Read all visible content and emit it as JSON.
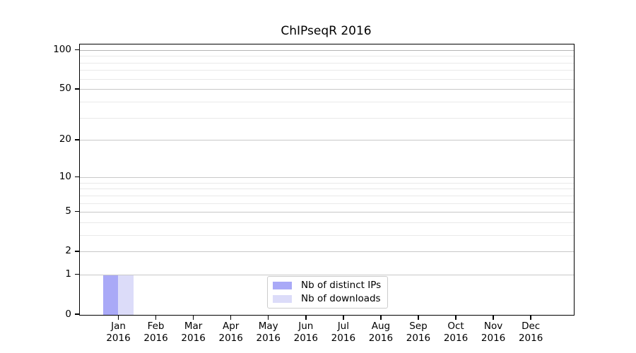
{
  "figure": {
    "background": "#ffffff"
  },
  "chart_data": {
    "type": "bar",
    "title": "ChIPseqR 2016",
    "categories": [
      "Jan 2016",
      "Feb 2016",
      "Mar 2016",
      "Apr 2016",
      "May 2016",
      "Jun 2016",
      "Jul 2016",
      "Aug 2016",
      "Sep 2016",
      "Oct 2016",
      "Nov 2016",
      "Dec 2016"
    ],
    "series": [
      {
        "name": "Nb of distinct IPs",
        "color": "#a9a9f7",
        "values": [
          1,
          0,
          0,
          0,
          0,
          0,
          0,
          0,
          0,
          0,
          0,
          0
        ]
      },
      {
        "name": "Nb of downloads",
        "color": "#dcdcf9",
        "values": [
          1,
          0,
          0,
          0,
          0,
          0,
          0,
          0,
          0,
          0,
          0,
          0
        ]
      }
    ],
    "xlabel": "",
    "ylabel": "",
    "yscale": "log1p",
    "ylim": [
      0,
      111
    ],
    "y_major_ticks": [
      0,
      1,
      2,
      5,
      10,
      20,
      50,
      100
    ],
    "y_minor_gridlines": [
      3,
      4,
      6,
      7,
      8,
      9,
      30,
      40,
      60,
      70,
      80,
      90
    ],
    "grid": "horizontal",
    "legend_position": "bottom-center-inside"
  },
  "colors": {
    "spine": "#000000",
    "grid_major": "#c8c8c8",
    "grid_major_top": "#b5b5b5",
    "grid_minor": "#e9e9e9",
    "text": "#000000",
    "legend_border": "#cccccc",
    "legend_background": "#ffffff"
  }
}
